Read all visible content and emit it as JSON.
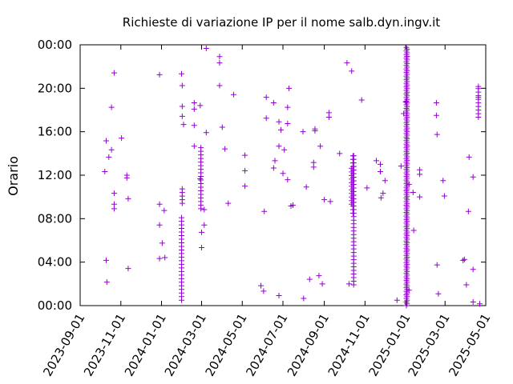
{
  "chart_data": {
    "type": "scatter",
    "title": "Richieste di variazione IP per il nome salb.dyn.ingv.it",
    "xlabel": "",
    "ylabel": "Orario",
    "color": "#9400d3",
    "marker": "plus",
    "grid": false,
    "x_range": [
      "2023-09-01",
      "2025-05-01"
    ],
    "x_ticks": [
      "2023-09-01",
      "2023-11-01",
      "2024-01-01",
      "2024-03-01",
      "2024-05-01",
      "2024-07-01",
      "2024-09-01",
      "2024-11-01",
      "2025-01-01",
      "2025-03-01",
      "2025-05-01"
    ],
    "y_range_hours": [
      0,
      24
    ],
    "y_ticks": [
      "00:00",
      "04:00",
      "08:00",
      "12:00",
      "16:00",
      "20:00",
      "00:00"
    ],
    "series": [
      {
        "points": [
          [
            "2023-10-08",
            "12:20"
          ],
          [
            "2023-10-10",
            "15:10"
          ],
          [
            "2023-10-10",
            "04:10"
          ],
          [
            "2023-10-11",
            "02:10"
          ],
          [
            "2023-10-14",
            "13:40"
          ],
          [
            "2023-10-18",
            "18:15"
          ],
          [
            "2023-10-18",
            "14:20"
          ],
          [
            "2023-10-22",
            "21:25"
          ],
          [
            "2023-10-22",
            "10:20"
          ],
          [
            "2023-10-22",
            "09:20"
          ],
          [
            "2023-10-22",
            "08:55"
          ],
          [
            "2023-11-02",
            "15:25"
          ],
          [
            "2023-11-10",
            "12:00"
          ],
          [
            "2023-11-10",
            "11:45"
          ],
          [
            "2023-11-12",
            "09:50"
          ],
          [
            "2023-11-12",
            "03:25"
          ],
          [
            "2023-12-29",
            "21:15"
          ],
          [
            "2023-12-29",
            "09:20"
          ],
          [
            "2023-12-29",
            "07:25"
          ],
          [
            "2023-12-29",
            "04:20"
          ],
          [
            "2024-01-02",
            "05:45"
          ],
          [
            "2024-01-05",
            "08:45"
          ],
          [
            "2024-01-06",
            "04:25"
          ],
          [
            "2024-01-31",
            "21:20"
          ],
          [
            "2024-02-01",
            "20:15"
          ],
          [
            "2024-02-01",
            "18:20"
          ],
          [
            "2024-02-01",
            "17:25"
          ],
          [
            "2024-02-03",
            "16:40"
          ],
          [
            "2024-02-19",
            "18:40"
          ],
          [
            "2024-02-19",
            "18:05"
          ],
          [
            "2024-02-19",
            "16:35"
          ],
          [
            "2024-02-19",
            "14:40"
          ],
          [
            "2024-02-28",
            "18:25"
          ],
          [
            "2024-02-28",
            "11:40"
          ],
          [
            "2024-03-01",
            "06:45"
          ],
          [
            "2024-03-01",
            "05:20"
          ],
          [
            "2024-03-05",
            "07:25"
          ],
          [
            "2024-03-05",
            "08:50"
          ],
          [
            "2024-03-08",
            "15:55"
          ],
          [
            "2024-03-08",
            "23:40"
          ],
          [
            "2024-03-28",
            "22:55"
          ],
          [
            "2024-03-28",
            "22:20"
          ],
          [
            "2024-03-28",
            "20:15"
          ],
          [
            "2024-04-01",
            "16:25"
          ],
          [
            "2024-04-05",
            "14:25"
          ],
          [
            "2024-04-10",
            "09:25"
          ],
          [
            "2024-04-18",
            "19:25"
          ],
          [
            "2024-05-05",
            "13:50"
          ],
          [
            "2024-05-05",
            "12:25"
          ],
          [
            "2024-05-05",
            "11:00"
          ],
          [
            "2024-05-29",
            "01:50"
          ],
          [
            "2024-06-02",
            "01:20"
          ],
          [
            "2024-06-03",
            "08:40"
          ],
          [
            "2024-06-06",
            "19:10"
          ],
          [
            "2024-06-06",
            "17:15"
          ],
          [
            "2024-06-17",
            "18:40"
          ],
          [
            "2024-06-17",
            "12:40"
          ],
          [
            "2024-06-19",
            "13:20"
          ],
          [
            "2024-06-25",
            "16:55"
          ],
          [
            "2024-06-25",
            "14:40"
          ],
          [
            "2024-06-25",
            "00:55"
          ],
          [
            "2024-06-28",
            "16:10"
          ],
          [
            "2024-07-01",
            "12:10"
          ],
          [
            "2024-07-03",
            "14:20"
          ],
          [
            "2024-07-08",
            "18:15"
          ],
          [
            "2024-07-08",
            "16:45"
          ],
          [
            "2024-07-08",
            "11:35"
          ],
          [
            "2024-07-10",
            "20:00"
          ],
          [
            "2024-07-13",
            "09:10"
          ],
          [
            "2024-07-16",
            "09:15"
          ],
          [
            "2024-07-31",
            "16:00"
          ],
          [
            "2024-08-01",
            "00:40"
          ],
          [
            "2024-08-05",
            "10:55"
          ],
          [
            "2024-08-10",
            "02:25"
          ],
          [
            "2024-08-16",
            "13:10"
          ],
          [
            "2024-08-16",
            "12:45"
          ],
          [
            "2024-08-18",
            "16:05"
          ],
          [
            "2024-08-18",
            "16:15"
          ],
          [
            "2024-08-24",
            "02:45"
          ],
          [
            "2024-08-26",
            "14:40"
          ],
          [
            "2024-08-29",
            "02:00"
          ],
          [
            "2024-09-01",
            "09:45"
          ],
          [
            "2024-09-08",
            "17:20"
          ],
          [
            "2024-09-08",
            "17:45"
          ],
          [
            "2024-09-10",
            "09:35"
          ],
          [
            "2024-09-24",
            "14:00"
          ],
          [
            "2024-10-05",
            "22:20"
          ],
          [
            "2024-10-08",
            "02:00"
          ],
          [
            "2024-10-12",
            "21:35"
          ],
          [
            "2024-10-27",
            "18:55"
          ],
          [
            "2024-11-04",
            "10:50"
          ],
          [
            "2024-11-18",
            "13:20"
          ],
          [
            "2024-11-24",
            "13:00"
          ],
          [
            "2024-11-24",
            "12:20"
          ],
          [
            "2024-11-25",
            "09:55"
          ],
          [
            "2024-11-28",
            "10:20"
          ],
          [
            "2024-12-01",
            "11:30"
          ],
          [
            "2024-12-19",
            "00:30"
          ],
          [
            "2024-12-25",
            "12:50"
          ],
          [
            "2024-12-29",
            "17:40"
          ],
          [
            "2025-01-01",
            "18:45"
          ],
          [
            "2025-01-06",
            "01:25"
          ],
          [
            "2025-01-06",
            "11:10"
          ],
          [
            "2025-01-12",
            "10:25"
          ],
          [
            "2025-01-13",
            "06:55"
          ],
          [
            "2025-01-22",
            "12:30"
          ],
          [
            "2025-01-22",
            "12:05"
          ],
          [
            "2025-01-22",
            "10:00"
          ],
          [
            "2025-02-16",
            "18:40"
          ],
          [
            "2025-02-16",
            "17:30"
          ],
          [
            "2025-02-17",
            "15:45"
          ],
          [
            "2025-02-17",
            "03:45"
          ],
          [
            "2025-02-19",
            "01:05"
          ],
          [
            "2025-02-26",
            "11:30"
          ],
          [
            "2025-02-28",
            "10:05"
          ],
          [
            "2025-03-28",
            "04:10"
          ],
          [
            "2025-03-30",
            "04:15"
          ],
          [
            "2025-04-02",
            "01:55"
          ],
          [
            "2025-04-05",
            "08:40"
          ],
          [
            "2025-04-06",
            "13:40"
          ],
          [
            "2025-04-12",
            "03:20"
          ],
          [
            "2025-04-12",
            "11:50"
          ],
          [
            "2025-04-12",
            "00:20"
          ],
          [
            "2025-04-20",
            "19:10"
          ],
          [
            "2025-04-20",
            "20:10"
          ],
          [
            "2025-04-22",
            "00:10"
          ]
        ],
        "bursts": [
          {
            "date": "2024-01-31",
            "from": "00:30",
            "to": "08:10"
          },
          {
            "date": "2024-02-01",
            "from": "09:25",
            "to": "10:45"
          },
          {
            "date": "2024-02-29",
            "from": "08:55",
            "to": "14:45"
          },
          {
            "date": "2024-10-14",
            "from": "08:30",
            "to": "14:05"
          },
          {
            "date": "2024-10-15",
            "from": "01:55",
            "to": "14:00"
          },
          {
            "date": "2025-01-02",
            "from": "00:00",
            "to": "23:59"
          },
          {
            "date": "2025-01-03",
            "from": "00:10",
            "to": "23:50"
          },
          {
            "date": "2025-04-20",
            "from": "17:20",
            "to": "20:10"
          },
          {
            "date": "2024-10-12",
            "from": "09:20",
            "to": "12:40"
          }
        ]
      }
    ]
  }
}
